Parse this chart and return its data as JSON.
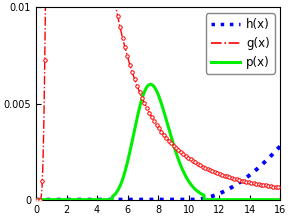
{
  "xlim": [
    0,
    16
  ],
  "ylim": [
    0,
    0.01
  ],
  "yticks": [
    0,
    0.005,
    0.01
  ],
  "xticks": [
    0,
    2,
    4,
    6,
    8,
    10,
    12,
    14,
    16
  ],
  "legend_labels": [
    "h(x)",
    "g(x)",
    "p(x)"
  ],
  "h_color": "#0000ff",
  "g_color": "#ff0000",
  "p_color": "#00ee00",
  "figsize": [
    2.9,
    2.18
  ],
  "dpi": 100
}
